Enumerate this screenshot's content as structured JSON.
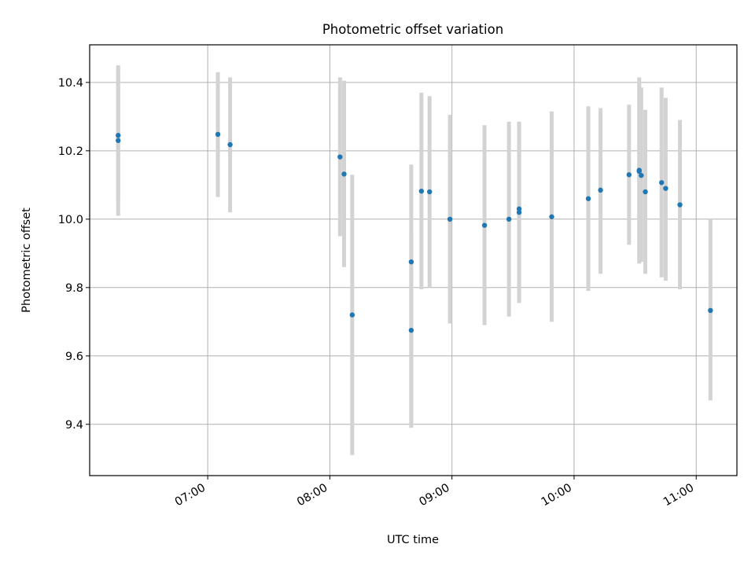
{
  "chart_data": {
    "type": "scatter",
    "title": "Photometric offset variation",
    "xlabel": "UTC time",
    "ylabel": "Photometric offset",
    "x_axis_type": "time",
    "xlim": [
      "06:02",
      "11:20"
    ],
    "ylim": [
      9.25,
      10.51
    ],
    "grid": true,
    "x_ticks": [
      "07:00",
      "08:00",
      "09:00",
      "10:00",
      "11:00"
    ],
    "y_ticks": [
      9.4,
      9.6,
      9.8,
      10.0,
      10.2,
      10.4
    ],
    "y_tick_labels": [
      "9.4",
      "9.6",
      "9.8",
      "10.0",
      "10.2",
      "10.4"
    ],
    "colors": {
      "points": "#1f77b4",
      "error_bars": "#d3d3d3",
      "grid": "#b0b0b0",
      "axes": "#000000"
    },
    "points": [
      {
        "time": "06:16",
        "y": 10.23,
        "err_low": 10.01,
        "err_high": 10.45
      },
      {
        "time": "06:16",
        "y": 10.245,
        "err_low": 10.055,
        "err_high": 10.435
      },
      {
        "time": "07:05",
        "y": 10.248,
        "err_low": 10.065,
        "err_high": 10.43
      },
      {
        "time": "07:11",
        "y": 10.218,
        "err_low": 10.02,
        "err_high": 10.415
      },
      {
        "time": "08:05",
        "y": 10.182,
        "err_low": 9.95,
        "err_high": 10.415
      },
      {
        "time": "08:07",
        "y": 10.132,
        "err_low": 9.86,
        "err_high": 10.405
      },
      {
        "time": "08:11",
        "y": 9.72,
        "err_low": 9.31,
        "err_high": 10.13
      },
      {
        "time": "08:40",
        "y": 9.875,
        "err_low": 9.39,
        "err_high": 10.16
      },
      {
        "time": "08:40",
        "y": 9.675,
        "err_low": 9.39,
        "err_high": 9.96
      },
      {
        "time": "08:45",
        "y": 10.082,
        "err_low": 9.795,
        "err_high": 10.37
      },
      {
        "time": "08:49",
        "y": 10.08,
        "err_low": 9.8,
        "err_high": 10.36
      },
      {
        "time": "08:59",
        "y": 10.0,
        "err_low": 9.695,
        "err_high": 10.305
      },
      {
        "time": "09:16",
        "y": 9.982,
        "err_low": 9.69,
        "err_high": 10.275
      },
      {
        "time": "09:28",
        "y": 10.0,
        "err_low": 9.715,
        "err_high": 10.285
      },
      {
        "time": "09:33",
        "y": 10.02,
        "err_low": 9.755,
        "err_high": 10.285
      },
      {
        "time": "09:33",
        "y": 10.03,
        "err_low": 9.755,
        "err_high": 10.285
      },
      {
        "time": "09:49",
        "y": 10.007,
        "err_low": 9.7,
        "err_high": 10.315
      },
      {
        "time": "10:07",
        "y": 10.06,
        "err_low": 9.79,
        "err_high": 10.33
      },
      {
        "time": "10:13",
        "y": 10.085,
        "err_low": 9.84,
        "err_high": 10.325
      },
      {
        "time": "10:27",
        "y": 10.13,
        "err_low": 9.925,
        "err_high": 10.335
      },
      {
        "time": "10:32",
        "y": 10.143,
        "err_low": 9.885,
        "err_high": 10.4
      },
      {
        "time": "10:32",
        "y": 10.14,
        "err_low": 9.87,
        "err_high": 10.415
      },
      {
        "time": "10:33",
        "y": 10.128,
        "err_low": 9.875,
        "err_high": 10.385
      },
      {
        "time": "10:35",
        "y": 10.08,
        "err_low": 9.84,
        "err_high": 10.32
      },
      {
        "time": "10:43",
        "y": 10.107,
        "err_low": 9.83,
        "err_high": 10.385
      },
      {
        "time": "10:45",
        "y": 10.09,
        "err_low": 9.82,
        "err_high": 10.355
      },
      {
        "time": "10:52",
        "y": 10.042,
        "err_low": 9.795,
        "err_high": 10.29
      },
      {
        "time": "11:07",
        "y": 9.733,
        "err_low": 9.47,
        "err_high": 10.0
      }
    ]
  }
}
